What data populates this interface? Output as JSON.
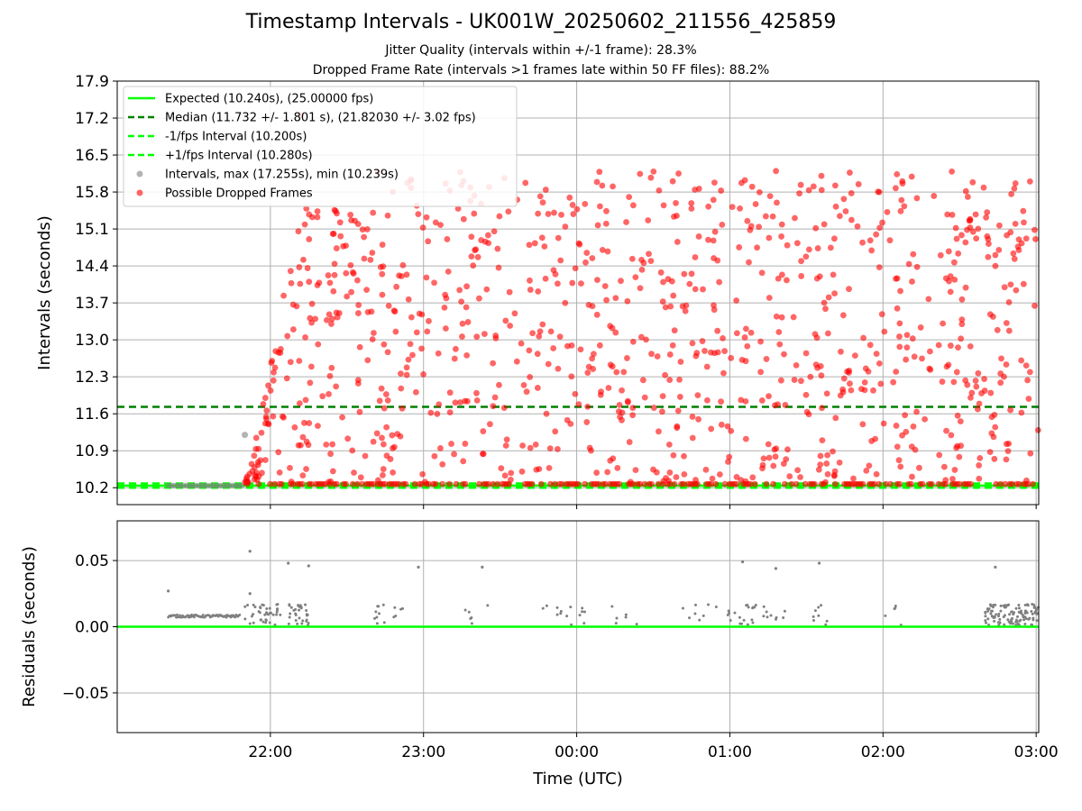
{
  "title": "Timestamp Intervals - UK001W_20250602_211556_425859",
  "subtitle_1": "Jitter Quality (intervals within +/-1 frame): 28.3%",
  "subtitle_2": "Dropped Frame Rate (intervals >1 frames late within 50 FF files): 88.2%",
  "colors": {
    "expected": "#00ff00",
    "median": "#008000",
    "interval_points": "#808080",
    "dropped_points": "#ff0000",
    "residuals": "#808080",
    "grid": "#b0b0b0"
  },
  "chart_data": [
    {
      "type": "scatter",
      "name": "intervals-panel",
      "xlabel": "",
      "ylabel": "Intervals (seconds)",
      "xlim": [
        "21:00",
        "03:01"
      ],
      "ylim": [
        9.88,
        17.9
      ],
      "yticks": [
        10.2,
        10.9,
        11.6,
        12.3,
        13.0,
        13.7,
        14.4,
        15.1,
        15.8,
        16.5,
        17.2,
        17.9
      ],
      "ytick_labels": [
        "10.2",
        "10.9",
        "11.6",
        "12.3",
        "13.0",
        "13.7",
        "14.4",
        "15.1",
        "15.8",
        "16.5",
        "17.2",
        "17.9"
      ],
      "xticks": [
        "22:00",
        "23:00",
        "00:00",
        "01:00",
        "02:00",
        "03:00"
      ],
      "grid": true,
      "legend_position": "top-left",
      "legend": [
        {
          "label": "Expected (10.240s), (25.00000 fps)",
          "style": "line-solid",
          "color": "#00ff00"
        },
        {
          "label": "Median (11.732 +/- 1.801 s), (21.82030 +/- 3.02 fps)",
          "style": "line-dashed",
          "color": "#008000"
        },
        {
          "label": "-1/fps Interval (10.200s)",
          "style": "line-dashed",
          "color": "#00ff00"
        },
        {
          "label": "+1/fps Interval (10.280s)",
          "style": "line-dashed",
          "color": "#00ff00"
        },
        {
          "label": "Intervals, max (17.255s), min (10.239s)",
          "style": "marker",
          "color": "#808080"
        },
        {
          "label": "Possible Dropped Frames",
          "style": "marker",
          "color": "#ff0000"
        }
      ],
      "reference_lines": [
        {
          "name": "Expected",
          "y": 10.24
        },
        {
          "name": "Median",
          "y": 11.732
        },
        {
          "name": "-1/fps Interval",
          "y": 10.2
        },
        {
          "name": "+1/fps Interval",
          "y": 10.28
        }
      ],
      "series": [
        {
          "name": "Intervals",
          "x_range": [
            "21:20",
            "21:50"
          ],
          "y_range": [
            10.239,
            11.2
          ],
          "note_points": [
            {
              "x": "21:50",
              "y": 11.2
            }
          ]
        },
        {
          "name": "Possible Dropped Frames",
          "x_range": [
            "21:50",
            "03:01"
          ],
          "y_range": [
            10.26,
            17.255
          ],
          "max": 17.255
        }
      ]
    },
    {
      "type": "scatter",
      "name": "residuals-panel",
      "xlabel": "Time (UTC)",
      "ylabel": "Residuals (seconds)",
      "xlim": [
        "21:00",
        "03:01"
      ],
      "ylim": [
        -0.08,
        0.08
      ],
      "yticks": [
        -0.05,
        0.0,
        0.05
      ],
      "ytick_labels": [
        "−0.05",
        "0.00",
        "0.05"
      ],
      "xticks": [
        "22:00",
        "23:00",
        "00:00",
        "01:00",
        "02:00",
        "03:00"
      ],
      "xtick_labels": [
        "22:00",
        "23:00",
        "00:00",
        "01:00",
        "02:00",
        "03:00"
      ],
      "grid": true,
      "reference_lines": [
        {
          "name": "zero",
          "y": 0.0
        }
      ],
      "series": [
        {
          "name": "Residuals",
          "baseline_segment": {
            "x_range": [
              "21:20",
              "21:48"
            ],
            "y": 0.008
          },
          "outliers": [
            {
              "x": "21:20",
              "y": 0.027
            },
            {
              "x": "21:52",
              "y": 0.057
            },
            {
              "x": "21:52",
              "y": 0.025
            },
            {
              "x": "22:07",
              "y": 0.048
            },
            {
              "x": "22:15",
              "y": 0.046
            },
            {
              "x": "22:58",
              "y": 0.045
            },
            {
              "x": "23:23",
              "y": 0.045
            },
            {
              "x": "01:05",
              "y": 0.049
            },
            {
              "x": "01:18",
              "y": 0.044
            },
            {
              "x": "01:35",
              "y": 0.048
            },
            {
              "x": "02:44",
              "y": 0.045
            }
          ]
        }
      ]
    }
  ]
}
